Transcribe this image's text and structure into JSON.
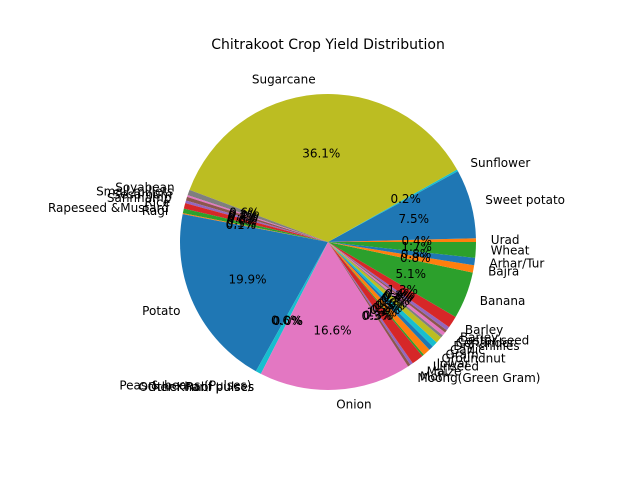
{
  "chart_data": {
    "type": "pie",
    "title": "Chitrakoot Crop Yield Distribution",
    "start_angle_deg": 0,
    "direction": "counterclockwise",
    "autopct": "%1.1f%%",
    "slices": [
      {
        "label": "Urad",
        "value": 0.4,
        "color": "#ff7f0e"
      },
      {
        "label": "Sweet potato",
        "value": 7.5,
        "color": "#1f77b4"
      },
      {
        "label": "Sunflower",
        "value": 0.2,
        "color": "#17becf"
      },
      {
        "label": "Sugarcane",
        "value": 35.9,
        "color": "#bcbd22"
      },
      {
        "label": "Soyabean",
        "value": 0.6,
        "color": "#7f7f7f"
      },
      {
        "label": "Small millets",
        "value": 0.2,
        "color": "#e377c2"
      },
      {
        "label": "Sesamum",
        "value": 0.4,
        "color": "#8c564b"
      },
      {
        "label": "Sannhamp",
        "value": 0.3,
        "color": "#9467bd"
      },
      {
        "label": "Rice",
        "value": 0.6,
        "color": "#d62728"
      },
      {
        "label": "Rapeseed &Mustard",
        "value": 0.5,
        "color": "#2ca02c"
      },
      {
        "label": "Ragi",
        "value": 0.1,
        "color": "#ff7f0e"
      },
      {
        "label": "Potato",
        "value": 19.8,
        "color": "#1f77b4"
      },
      {
        "label": "Peas & beans (Pulses)",
        "value": 0.6,
        "color": "#17becf"
      },
      {
        "label": "Other Kharif pulses",
        "value": 0.0,
        "color": "#bcbd22"
      },
      {
        "label": "Other Rabi pulses",
        "value": 0.0,
        "color": "#7f7f7f"
      },
      {
        "label": "Onion",
        "value": 16.5,
        "color": "#e377c2"
      },
      {
        "label": "Moong(Green Gram)",
        "value": 0.3,
        "color": "#8c564b"
      },
      {
        "label": "Moth",
        "value": 0.3,
        "color": "#9467bd"
      },
      {
        "label": "Maize",
        "value": 1.3,
        "color": "#d62728"
      },
      {
        "label": "Linseed",
        "value": 0.2,
        "color": "#2ca02c"
      },
      {
        "label": "Jowar",
        "value": 0.8,
        "color": "#ff7f0e"
      },
      {
        "label": "Groundnut",
        "value": 0.5,
        "color": "#1f77b4"
      },
      {
        "label": "Gram",
        "value": 0.6,
        "color": "#17becf"
      },
      {
        "label": "Garlic",
        "value": 0.7,
        "color": "#bcbd22"
      },
      {
        "label": "Dry chillies",
        "value": 0.3,
        "color": "#7f7f7f"
      },
      {
        "label": "Coriander",
        "value": 0.4,
        "color": "#e377c2"
      },
      {
        "label": "Castor seed",
        "value": 0.3,
        "color": "#8c564b"
      },
      {
        "label": "Barley",
        "value": 0.4,
        "color": "#9467bd"
      },
      {
        "label": "Barley",
        "value": 1.3,
        "color": "#d62728"
      },
      {
        "label": "Banana",
        "value": 5.1,
        "color": "#2ca02c"
      },
      {
        "label": "Bajra",
        "value": 0.8,
        "color": "#ff7f0e"
      },
      {
        "label": "Arhar/Tur",
        "value": 0.8,
        "color": "#1f77b4"
      },
      {
        "label": "Wheat",
        "value": 1.7,
        "color": "#2ca02c"
      }
    ]
  }
}
